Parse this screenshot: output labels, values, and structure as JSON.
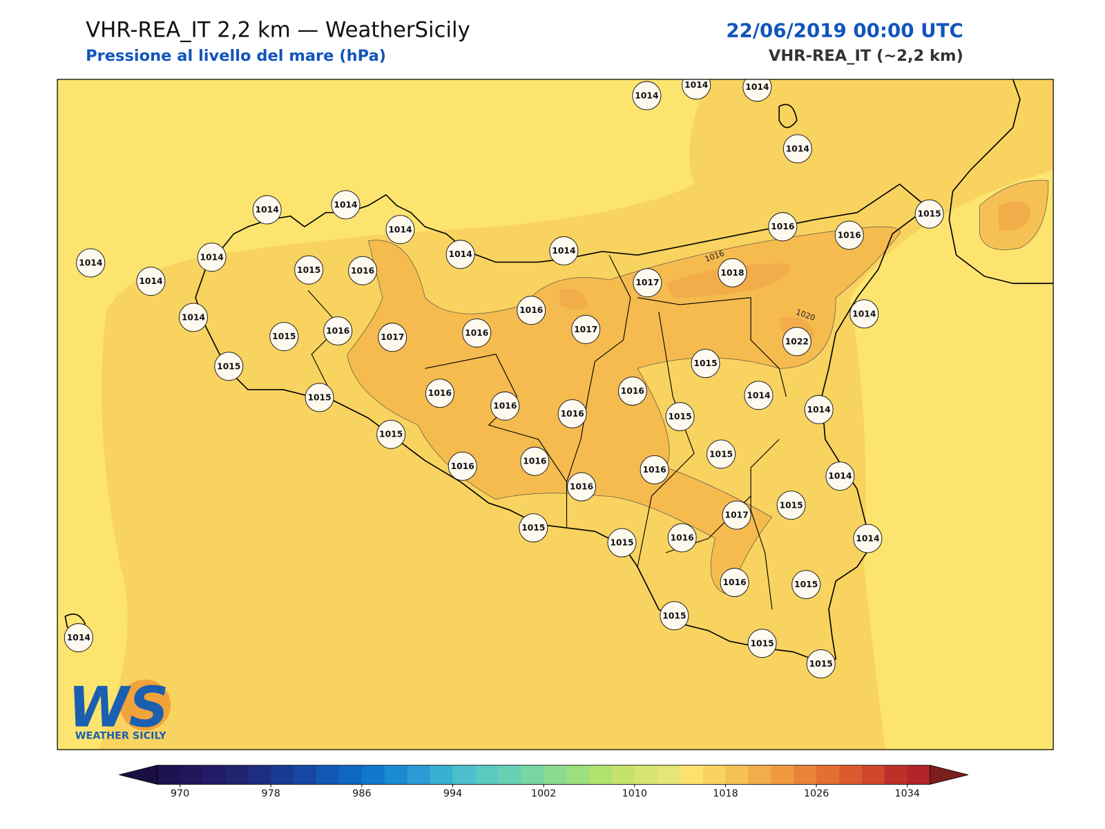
{
  "header": {
    "title": "VHR-REA_IT 2,2 km — WeatherSicily",
    "subtitle": "Pressione al livello del mare (hPa)",
    "date": "22/06/2019 00:00 UTC",
    "model": "VHR-REA_IT (~2,2 km)"
  },
  "map": {
    "stations": [
      1014,
      1014,
      1014,
      1014,
      1014,
      1014,
      1014,
      1014,
      1014,
      1016,
      1016,
      1015,
      1014,
      1014,
      1014,
      1015,
      1016,
      1017,
      1018,
      1014,
      1016,
      1014,
      1015,
      1016,
      1017,
      1016,
      1017,
      1022,
      1015,
      1015,
      1016,
      1016,
      1014,
      1015,
      1016,
      1016,
      1015,
      1014,
      1015,
      1015,
      1016,
      1016,
      1016,
      1014,
      1016,
      1015,
      1017,
      1015,
      1015,
      1016,
      1014,
      1016,
      1015,
      1015,
      1014,
      1015,
      1015
    ],
    "contour_labels": [
      "1016",
      "1020"
    ]
  },
  "logo": {
    "mark": "WS",
    "name": "WEATHER SICILY"
  },
  "colorbar": {
    "lim": [
      968,
      1036
    ],
    "ticks": [
      970,
      978,
      986,
      994,
      1002,
      1010,
      1018,
      1026,
      1034
    ],
    "under_color": "#1a0f40",
    "over_color": "#7a1e1e",
    "colors": [
      "#1e1250",
      "#23155a",
      "#241b66",
      "#22236f",
      "#1f2d80",
      "#1a3a92",
      "#1548a5",
      "#1157b5",
      "#0e67c2",
      "#0f78cc",
      "#1a8ad2",
      "#2a9bd4",
      "#38b0d2",
      "#4bbfcc",
      "#5ac9c0",
      "#68d0b3",
      "#78d6a3",
      "#8adb90",
      "#9cdf80",
      "#b0e270",
      "#c4e36a",
      "#d5e56f",
      "#e4e676",
      "#fbe26e",
      "#f9d35f",
      "#f6c154",
      "#f2ad4a",
      "#ef9a40",
      "#ea8338",
      "#e56e32",
      "#dd5a2e",
      "#d0462d",
      "#bf2f2a",
      "#b0242a"
    ]
  }
}
